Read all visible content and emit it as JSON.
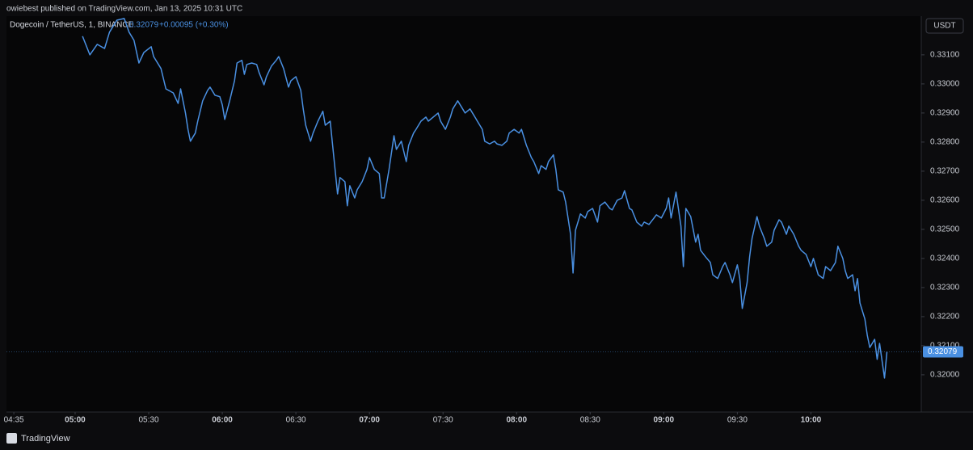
{
  "chart_data": {
    "type": "line",
    "publisher_line": "owiebest published on TradingView.com, Jan 13, 2025 10:31 UTC",
    "title": "Dogecoin / TetherUS, 1, BINANCE",
    "last_price": 0.32079,
    "change_label": "+0.00095 (+0.30%)",
    "currency": "USDT",
    "brand": "TradingView",
    "grid": false,
    "xlim": [
      "04:32",
      "10:45"
    ],
    "xticks": [
      "04:35",
      "05:00",
      "05:30",
      "06:00",
      "06:30",
      "07:00",
      "07:30",
      "08:00",
      "08:30",
      "09:00",
      "09:30",
      "10:00"
    ],
    "ylim": [
      0.31872,
      0.33233
    ],
    "yticks": [
      {
        "value": 0.331,
        "label": "0.33100"
      },
      {
        "value": 0.33,
        "label": "0.33000"
      },
      {
        "value": 0.329,
        "label": "0.32900"
      },
      {
        "value": 0.328,
        "label": "0.32800"
      },
      {
        "value": 0.327,
        "label": "0.32700"
      },
      {
        "value": 0.326,
        "label": "0.32600"
      },
      {
        "value": 0.325,
        "label": "0.32500"
      },
      {
        "value": 0.324,
        "label": "0.32400"
      },
      {
        "value": 0.323,
        "label": "0.32300"
      },
      {
        "value": 0.322,
        "label": "0.32200"
      },
      {
        "value": 0.321,
        "label": "0.32100"
      },
      {
        "value": 0.32,
        "label": "0.32000"
      }
    ],
    "x": [
      "05:03",
      "05:06",
      "05:09",
      "05:12",
      "05:14",
      "05:17",
      "05:20",
      "05:22",
      "05:24",
      "05:26",
      "05:28",
      "05:31",
      "05:32",
      "05:35",
      "05:37",
      "05:40",
      "05:42",
      "05:43",
      "05:45",
      "05:46",
      "05:47",
      "05:49",
      "05:50",
      "05:52",
      "05:54",
      "05:55",
      "05:57",
      "05:59",
      "06:00",
      "06:01",
      "06:03",
      "06:05",
      "06:06",
      "06:08",
      "06:09",
      "06:10",
      "06:12",
      "06:14",
      "06:15",
      "06:17",
      "06:18",
      "06:20",
      "06:22",
      "06:23",
      "06:25",
      "06:27",
      "06:28",
      "06:30",
      "06:32",
      "06:33",
      "06:34",
      "06:36",
      "06:37",
      "06:39",
      "06:41",
      "06:42",
      "06:44",
      "06:45",
      "06:47",
      "06:48",
      "06:50",
      "06:51",
      "06:52",
      "06:54",
      "06:55",
      "06:57",
      "06:59",
      "07:00",
      "07:02",
      "07:04",
      "07:05",
      "07:06",
      "07:08",
      "07:10",
      "07:11",
      "07:13",
      "07:15",
      "07:16",
      "07:18",
      "07:19",
      "07:21",
      "07:23",
      "07:24",
      "07:26",
      "07:28",
      "07:29",
      "07:31",
      "07:33",
      "07:34",
      "07:36",
      "07:38",
      "07:39",
      "07:41",
      "07:43",
      "07:44",
      "07:46",
      "07:47",
      "07:49",
      "07:51",
      "07:52",
      "07:54",
      "07:56",
      "07:57",
      "07:59",
      "08:01",
      "08:02",
      "08:04",
      "08:06",
      "08:07",
      "08:09",
      "08:10",
      "08:12",
      "08:13",
      "08:15",
      "08:16",
      "08:17",
      "08:19",
      "08:20",
      "08:22",
      "08:23",
      "08:24",
      "08:26",
      "08:28",
      "08:29",
      "08:31",
      "08:33",
      "08:34",
      "08:36",
      "08:38",
      "08:39",
      "08:41",
      "08:43",
      "08:44",
      "08:46",
      "08:47",
      "08:49",
      "08:51",
      "08:52",
      "08:54",
      "08:56",
      "08:57",
      "08:59",
      "09:01",
      "09:02",
      "09:03",
      "09:05",
      "09:07",
      "09:08",
      "09:09",
      "09:11",
      "09:13",
      "09:14",
      "09:15",
      "09:17",
      "09:19",
      "09:20",
      "09:22",
      "09:24",
      "09:25",
      "09:27",
      "09:28",
      "09:30",
      "09:31",
      "09:32",
      "09:34",
      "09:35",
      "09:36",
      "09:38",
      "09:39",
      "09:41",
      "09:42",
      "09:44",
      "09:45",
      "09:47",
      "09:48",
      "09:50",
      "09:51",
      "09:53",
      "09:55",
      "09:56",
      "09:58",
      "10:00",
      "10:01",
      "10:03",
      "10:05",
      "10:06",
      "10:08",
      "10:10",
      "10:11",
      "10:13",
      "10:14",
      "10:15",
      "10:17",
      "10:18",
      "10:19",
      "10:20",
      "10:22",
      "10:23",
      "10:24",
      "10:26",
      "10:27",
      "10:28",
      "10:30",
      "10:31"
    ],
    "series": [
      {
        "color": "#4a90e2",
        "values": [
          0.33164,
          0.331,
          0.33136,
          0.33122,
          0.33178,
          0.33219,
          0.33225,
          0.33178,
          0.3315,
          0.33072,
          0.33108,
          0.33128,
          0.33094,
          0.33053,
          0.32983,
          0.32969,
          0.32933,
          0.32983,
          0.329,
          0.32844,
          0.32803,
          0.32831,
          0.32872,
          0.32942,
          0.32978,
          0.32989,
          0.32961,
          0.32956,
          0.32928,
          0.32878,
          0.32942,
          0.33011,
          0.33072,
          0.33081,
          0.33033,
          0.33067,
          0.33072,
          0.33067,
          0.33039,
          0.32997,
          0.33025,
          0.33061,
          0.33081,
          0.33094,
          0.33053,
          0.32989,
          0.33011,
          0.33025,
          0.32978,
          0.32914,
          0.32858,
          0.32803,
          0.32831,
          0.32872,
          0.32906,
          0.32858,
          0.32872,
          0.32789,
          0.32622,
          0.32678,
          0.32664,
          0.32581,
          0.3265,
          0.32608,
          0.32636,
          0.32664,
          0.32706,
          0.32747,
          0.32706,
          0.32692,
          0.32608,
          0.32608,
          0.32706,
          0.32822,
          0.32775,
          0.32803,
          0.32733,
          0.32789,
          0.32831,
          0.32844,
          0.32872,
          0.32886,
          0.32872,
          0.32886,
          0.329,
          0.32872,
          0.32844,
          0.32886,
          0.32914,
          0.32942,
          0.32914,
          0.329,
          0.32914,
          0.32886,
          0.32872,
          0.32844,
          0.32803,
          0.32794,
          0.32803,
          0.32794,
          0.32789,
          0.32803,
          0.32831,
          0.32844,
          0.32831,
          0.32844,
          0.32789,
          0.32747,
          0.32733,
          0.32692,
          0.32719,
          0.32706,
          0.32733,
          0.32756,
          0.32706,
          0.32636,
          0.32628,
          0.32594,
          0.32483,
          0.3235,
          0.32497,
          0.32553,
          0.32539,
          0.32561,
          0.32572,
          0.32525,
          0.32581,
          0.32594,
          0.32572,
          0.32567,
          0.326,
          0.32608,
          0.32633,
          0.32572,
          0.32567,
          0.32525,
          0.32511,
          0.32525,
          0.32517,
          0.32539,
          0.3255,
          0.32539,
          0.32572,
          0.32608,
          0.32539,
          0.32628,
          0.32511,
          0.32372,
          0.32572,
          0.32544,
          0.32456,
          0.32483,
          0.32428,
          0.32406,
          0.32386,
          0.32344,
          0.32331,
          0.32372,
          0.32386,
          0.32344,
          0.32317,
          0.32378,
          0.32331,
          0.32228,
          0.32317,
          0.32406,
          0.32469,
          0.32544,
          0.32511,
          0.32469,
          0.32442,
          0.32456,
          0.32497,
          0.32533,
          0.32525,
          0.32483,
          0.32511,
          0.32483,
          0.32442,
          0.32428,
          0.32414,
          0.32372,
          0.324,
          0.32344,
          0.32331,
          0.32372,
          0.32358,
          0.32386,
          0.32442,
          0.324,
          0.32358,
          0.32331,
          0.32344,
          0.32289,
          0.32331,
          0.32247,
          0.32192,
          0.32136,
          0.32094,
          0.32122,
          0.32053,
          0.32108,
          0.31989,
          0.32079
        ]
      }
    ]
  }
}
